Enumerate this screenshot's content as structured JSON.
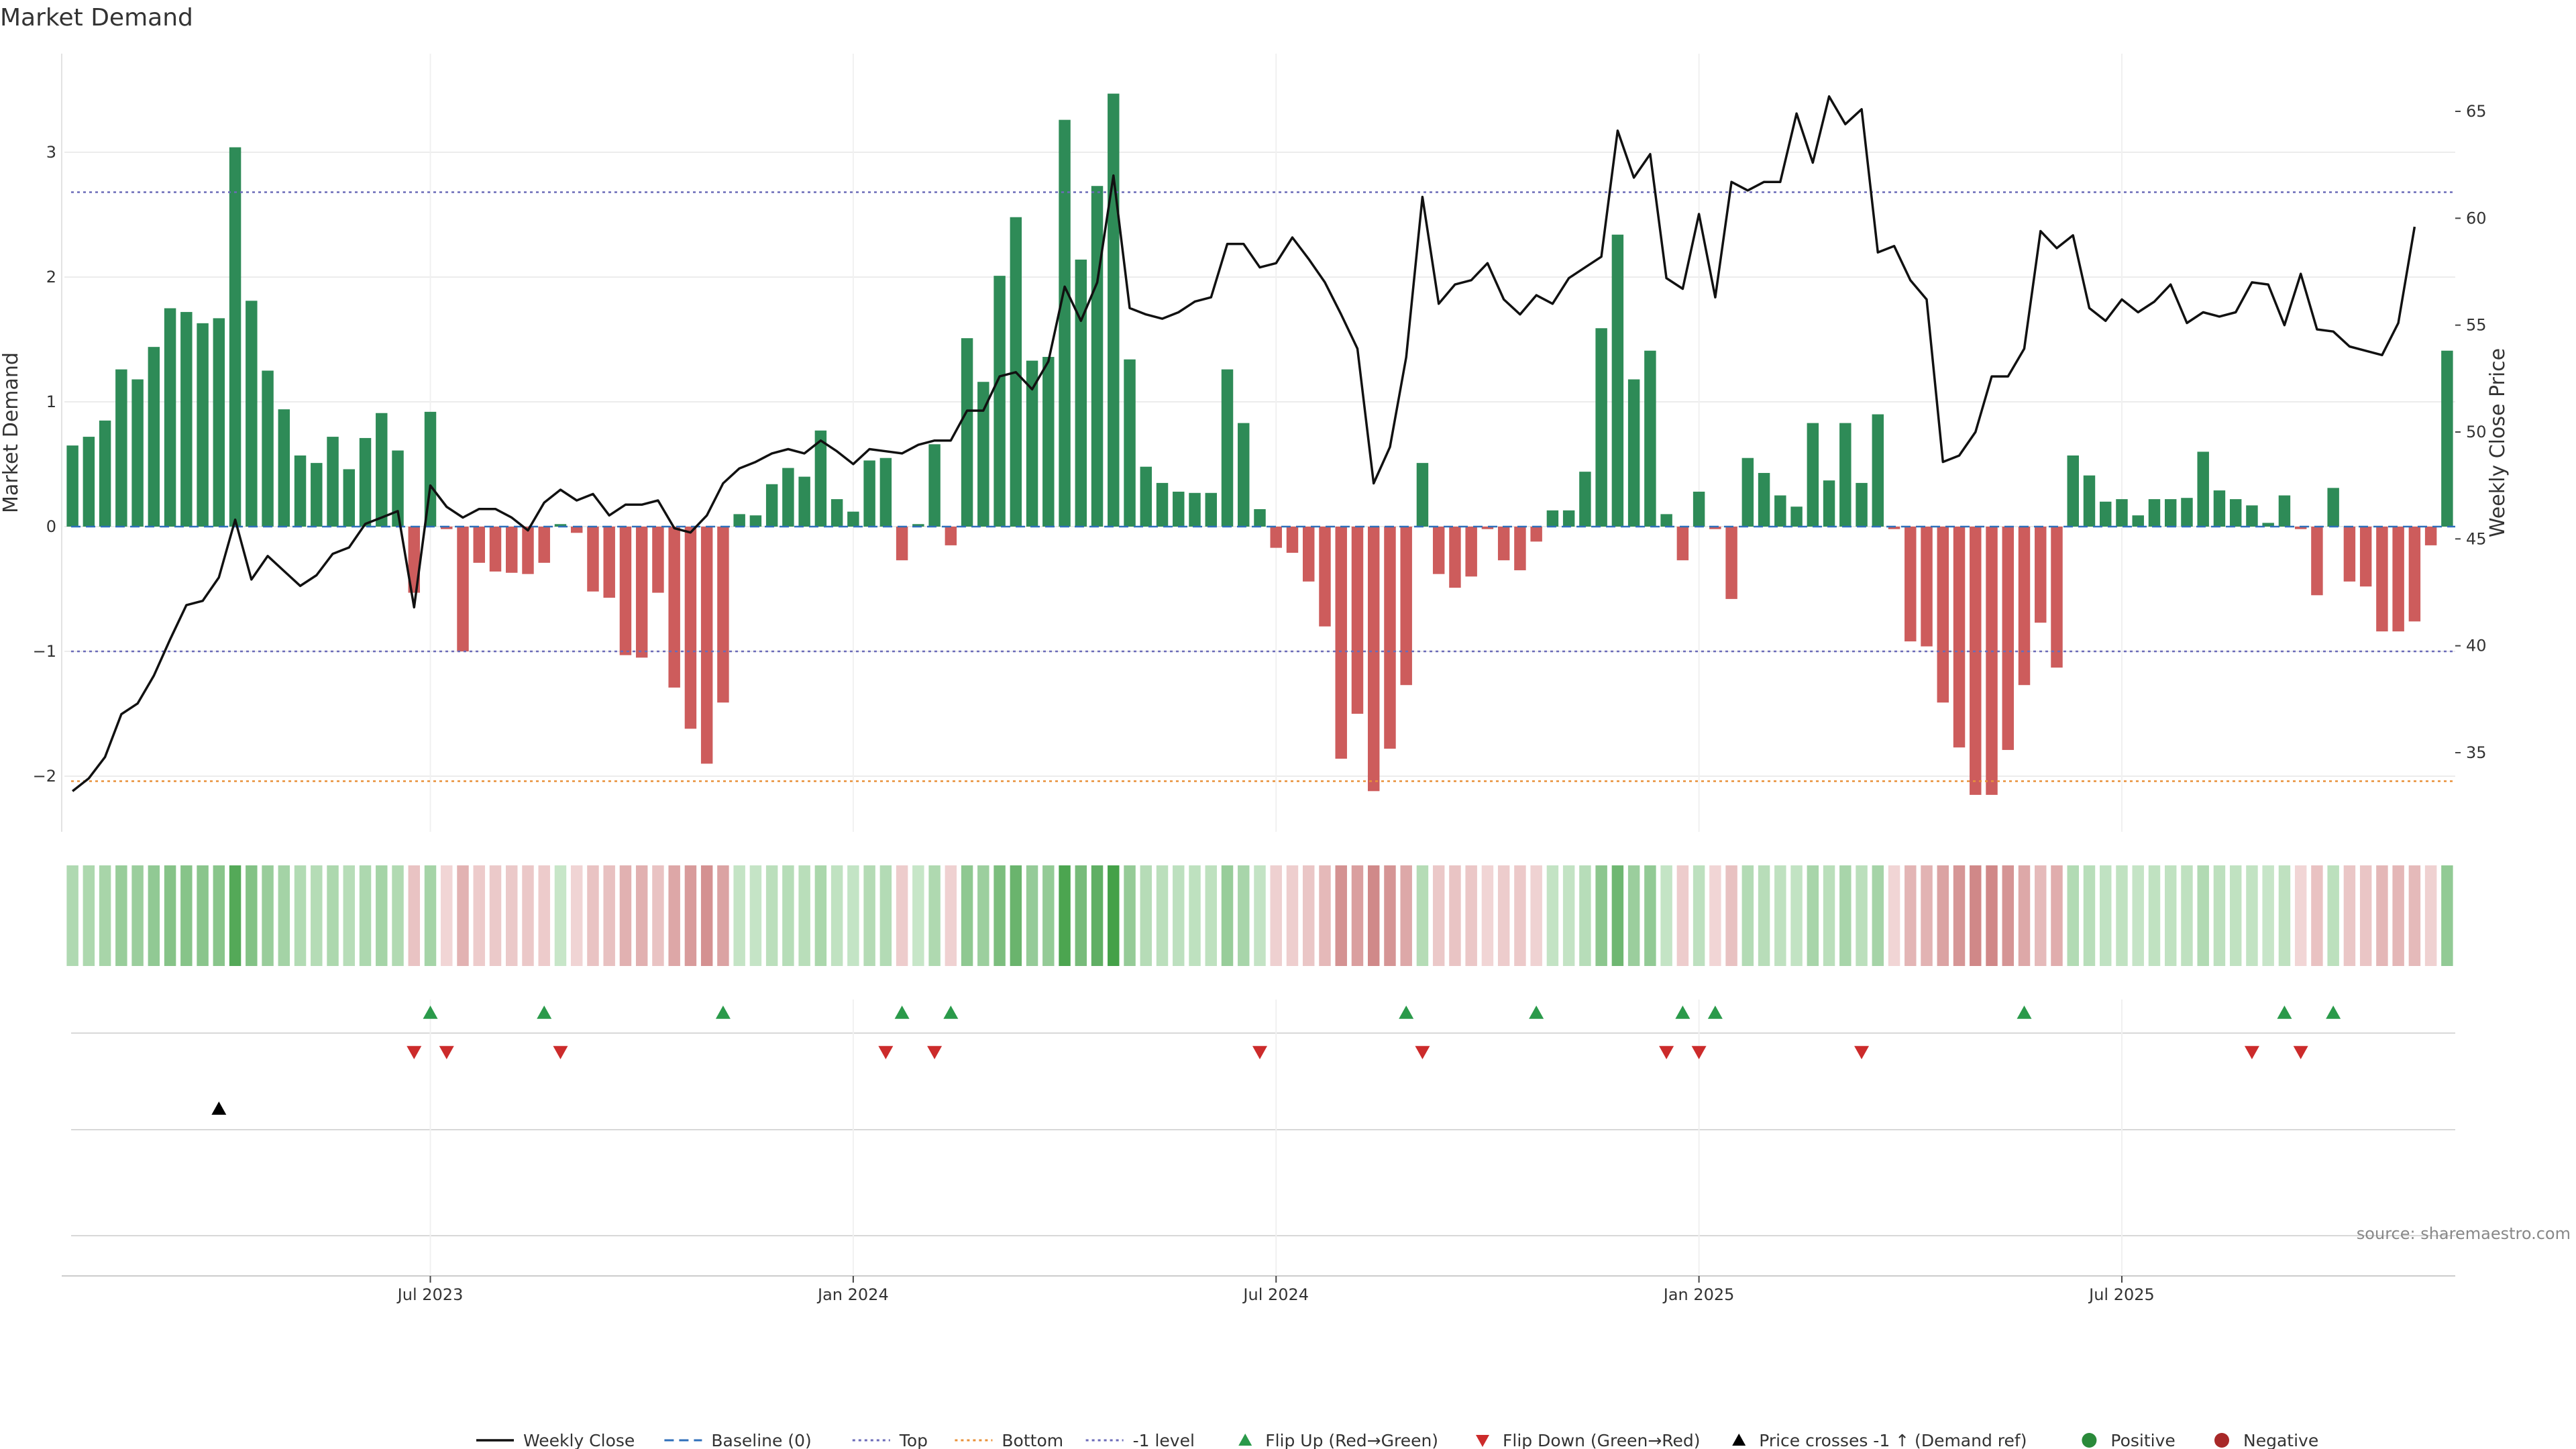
{
  "chart_data": {
    "type": "bar+line",
    "title": "Market Demand",
    "ylabel_left": "Market Demand",
    "ylabel_right": "Weekly Close Price",
    "ylim_left": [
      -2.4,
      3.8
    ],
    "ylim_right": [
      31,
      68
    ],
    "yticks_left": [
      -2,
      -1,
      0,
      1,
      2,
      3
    ],
    "ytick_labels_left": [
      "−2",
      "−1",
      "0",
      "1",
      "2",
      "3"
    ],
    "yticks_right": [
      35,
      40,
      45,
      50,
      55,
      60,
      65
    ],
    "ytick_labels_right": [
      "35",
      "40",
      "45",
      "50",
      "55",
      "60",
      "65"
    ],
    "x_tick_indices": [
      22,
      48,
      74,
      100,
      126
    ],
    "x_tick_labels": [
      "Jul 2023",
      "Jan 2024",
      "Jul 2024",
      "Jan 2025",
      "Jul 2025"
    ],
    "reference_lines": {
      "top": 2.68,
      "bottom": -2.04,
      "minus_one": -1.0,
      "baseline": 0
    },
    "demand": [
      0.65,
      0.72,
      0.85,
      1.26,
      1.18,
      1.44,
      1.75,
      1.72,
      1.63,
      1.67,
      3.04,
      1.81,
      1.25,
      0.94,
      0.57,
      0.51,
      0.72,
      0.46,
      0.71,
      0.91,
      0.61,
      -0.53,
      0.92,
      -0.02,
      -1.0,
      -0.29,
      -0.36,
      -0.37,
      -0.38,
      -0.29,
      0.02,
      -0.05,
      -0.52,
      -0.57,
      -1.03,
      -1.05,
      -0.53,
      -1.29,
      -1.62,
      -1.9,
      -1.41,
      0.1,
      0.09,
      0.34,
      0.47,
      0.4,
      0.77,
      0.22,
      0.12,
      0.53,
      0.55,
      -0.27,
      0.02,
      0.66,
      -0.15,
      1.51,
      1.16,
      2.01,
      2.48,
      1.33,
      1.36,
      3.26,
      2.14,
      2.73,
      3.47,
      1.34,
      0.48,
      0.35,
      0.28,
      0.27,
      0.27,
      1.26,
      0.83,
      0.14,
      -0.17,
      -0.21,
      -0.44,
      -0.8,
      -1.86,
      -1.5,
      -2.12,
      -1.78,
      -1.27,
      0.51,
      -0.38,
      -0.49,
      -0.4,
      -0.02,
      -0.27,
      -0.35,
      -0.12,
      0.13,
      0.13,
      0.44,
      1.59,
      2.34,
      1.18,
      1.41,
      0.1,
      -0.27,
      0.28,
      -0.02,
      -0.58,
      0.55,
      0.43,
      0.25,
      0.16,
      0.83,
      0.37,
      0.83,
      0.35,
      0.9,
      -0.02,
      -0.92,
      -0.96,
      -1.41,
      -1.77,
      -2.15,
      -2.15,
      -1.79,
      -1.27,
      -0.77,
      -1.13,
      0.57,
      0.41,
      0.2,
      0.22,
      0.09,
      0.22,
      0.22,
      0.23,
      0.6,
      0.29,
      0.22,
      0.17,
      0.03,
      0.25,
      -0.02,
      -0.55,
      0.31,
      -0.44,
      -0.48,
      -0.84,
      -0.84,
      -0.76,
      -0.15,
      1.41
    ],
    "weekly_close": [
      33.2,
      33.8,
      34.8,
      36.8,
      37.3,
      38.6,
      40.3,
      41.9,
      42.1,
      43.2,
      45.9,
      43.1,
      44.2,
      43.5,
      42.8,
      43.3,
      44.3,
      44.6,
      45.7,
      46.0,
      46.3,
      41.8,
      47.5,
      46.5,
      46.0,
      46.4,
      46.4,
      46.0,
      45.4,
      46.7,
      47.3,
      46.8,
      47.1,
      46.1,
      46.6,
      46.6,
      46.8,
      45.5,
      45.3,
      46.1,
      47.6,
      48.3,
      48.6,
      49.0,
      49.2,
      49.0,
      49.6,
      49.1,
      48.5,
      49.2,
      49.1,
      49.0,
      49.4,
      49.6,
      49.6,
      51.0,
      51.0,
      52.6,
      52.8,
      52.0,
      53.3,
      56.8,
      55.2,
      57.0,
      62.0,
      55.8,
      55.5,
      55.3,
      55.6,
      56.1,
      56.3,
      58.8,
      58.8,
      57.7,
      57.9,
      59.1,
      58.1,
      57.0,
      55.5,
      53.9,
      47.6,
      49.3,
      53.5,
      61.0,
      56.0,
      56.9,
      57.1,
      57.9,
      56.2,
      55.5,
      56.4,
      56.0,
      57.2,
      57.7,
      58.2,
      64.1,
      61.9,
      63.0,
      57.2,
      56.7,
      60.2,
      56.3,
      61.7,
      61.3,
      61.7,
      61.7,
      64.9,
      62.6,
      65.7,
      64.4,
      65.1,
      58.4,
      58.7,
      57.1,
      56.2,
      48.6,
      48.9,
      50.0,
      52.6,
      52.6,
      53.9,
      59.4,
      58.6,
      59.2,
      55.8,
      55.2,
      56.2,
      55.6,
      56.1,
      56.9,
      55.1,
      55.6,
      55.4,
      55.6,
      57.0,
      56.9,
      55.0,
      57.4,
      54.8,
      54.7,
      54.0,
      53.8,
      53.6,
      55.1,
      59.6
    ],
    "heat_strip": "weekly demand heatmap (green = positive, red = negative)",
    "flip_up_indices": [
      22,
      29,
      40,
      51,
      54,
      82,
      90,
      99,
      101,
      120,
      136,
      139
    ],
    "flip_down_indices": [
      21,
      23,
      30,
      50,
      53,
      73,
      83,
      98,
      100,
      110,
      134,
      137
    ],
    "price_cross_indices": [
      9
    ],
    "source": "source: sharemaestro.com",
    "legend": [
      {
        "label": "Weekly Close",
        "kind": "line",
        "color": "#111111"
      },
      {
        "label": "Baseline (0)",
        "kind": "dash",
        "color": "#2f6fba"
      },
      {
        "label": "Top",
        "kind": "dot",
        "color": "#6b6bb8"
      },
      {
        "label": "Bottom",
        "kind": "dot",
        "color": "#e8913a"
      },
      {
        "label": "-1 level",
        "kind": "dot",
        "color": "#6b6bb8"
      },
      {
        "label": "Flip Up (Red→Green)",
        "kind": "tri-up",
        "color": "#2a9a4a"
      },
      {
        "label": "Flip Down (Green→Red)",
        "kind": "tri-down",
        "color": "#cc2b2b"
      },
      {
        "label": "Price crosses -1 ↑ (Demand ref)",
        "kind": "tri-up",
        "color": "#000000"
      },
      {
        "label": "Positive",
        "kind": "dot-marker",
        "color": "#2a8a3a"
      },
      {
        "label": "Negative",
        "kind": "dot-marker",
        "color": "#a82828"
      }
    ],
    "colors": {
      "positive_bar": "#2e8b57",
      "negative_bar": "#cd5c5c",
      "heat_pos_light": "#c8e6c9",
      "heat_pos_dark": "#43a047",
      "heat_neg_light": "#f1d6d6",
      "heat_neg_dark": "#cf8686"
    }
  }
}
